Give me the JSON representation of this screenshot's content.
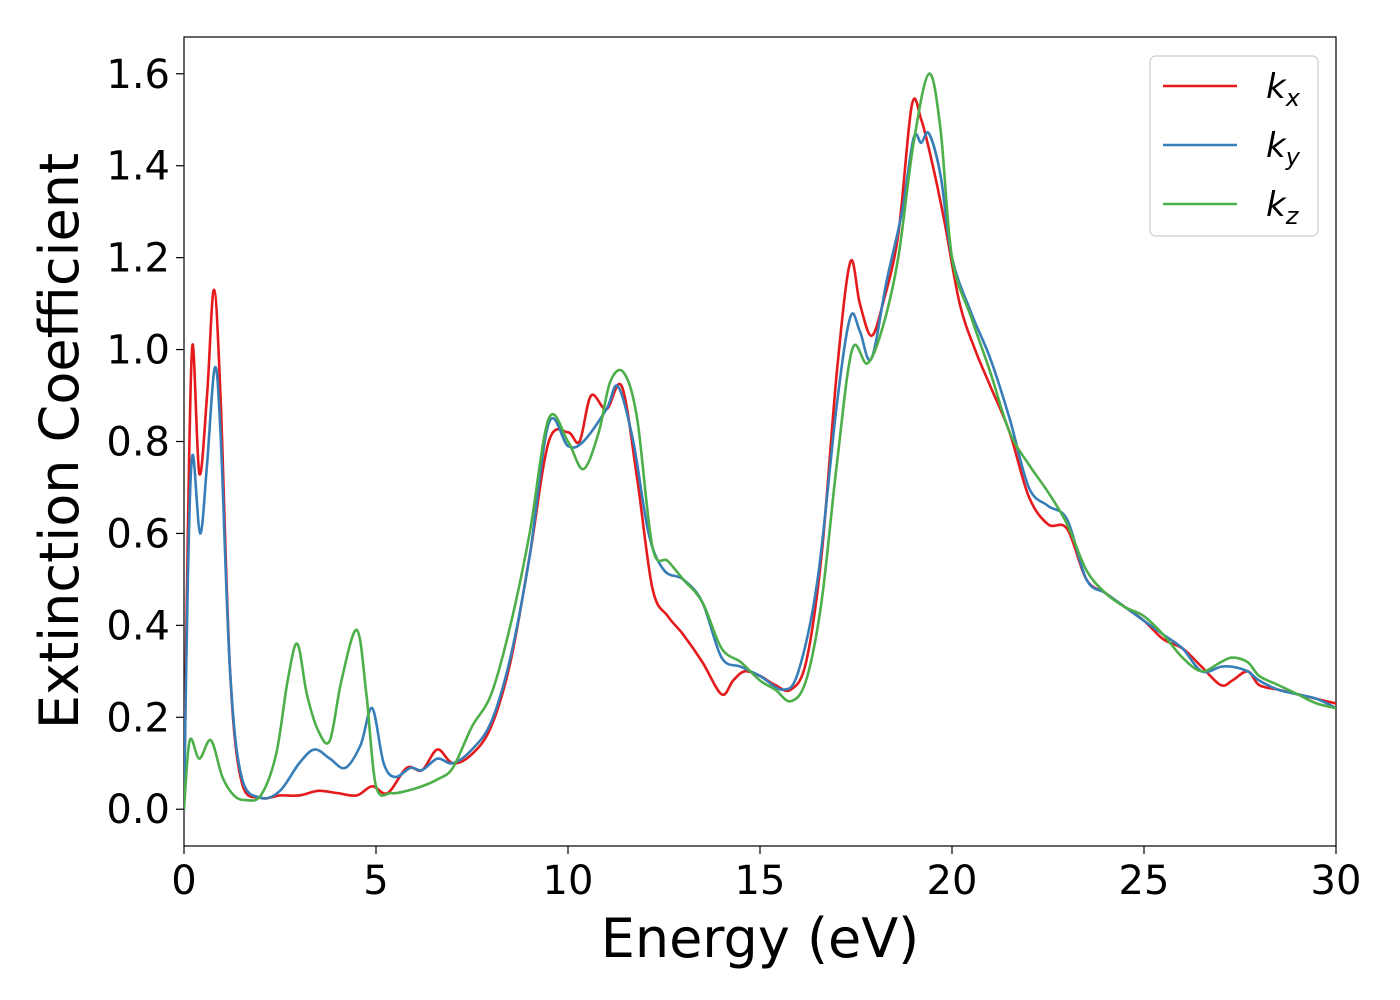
{
  "chart_data": {
    "type": "line",
    "xlabel": "Energy (eV)",
    "ylabel": "Extinction Coefficient",
    "xlim": [
      0,
      30
    ],
    "ylim": [
      -0.08,
      1.68
    ],
    "xticks": [
      "0",
      "5",
      "10",
      "15",
      "20",
      "25",
      "30"
    ],
    "yticks": [
      "0.0",
      "0.2",
      "0.4",
      "0.6",
      "0.8",
      "1.0",
      "1.2",
      "1.4",
      "1.6"
    ],
    "grid": false,
    "legend_position": "top-right",
    "series": [
      {
        "name": "k",
        "subscript": "x",
        "color": "#e41a1c",
        "x": [
          0,
          0.1,
          0.22,
          0.4,
          0.6,
          0.78,
          0.95,
          1.2,
          1.5,
          2.0,
          2.5,
          3.0,
          3.5,
          4.0,
          4.5,
          4.9,
          5.3,
          5.8,
          6.2,
          6.6,
          7.0,
          7.5,
          8.0,
          8.5,
          9.0,
          9.5,
          10.0,
          10.3,
          10.6,
          11.0,
          11.4,
          11.8,
          12.2,
          12.6,
          13.0,
          13.5,
          14.0,
          14.3,
          14.6,
          15.0,
          15.4,
          15.8,
          16.2,
          16.6,
          17.0,
          17.35,
          17.6,
          17.9,
          18.2,
          18.6,
          18.95,
          19.2,
          19.5,
          19.8,
          20.2,
          20.6,
          21.0,
          21.5,
          22.0,
          22.5,
          23.0,
          23.5,
          24.0,
          24.5,
          25.0,
          25.5,
          26.0,
          26.5,
          27.0,
          27.3,
          27.7,
          28.0,
          28.5,
          29.0,
          29.5,
          30.0
        ],
        "values": [
          0.0,
          0.6,
          1.01,
          0.73,
          0.9,
          1.13,
          0.9,
          0.3,
          0.06,
          0.025,
          0.03,
          0.03,
          0.04,
          0.035,
          0.03,
          0.05,
          0.035,
          0.09,
          0.085,
          0.13,
          0.1,
          0.12,
          0.18,
          0.32,
          0.55,
          0.8,
          0.82,
          0.8,
          0.9,
          0.87,
          0.92,
          0.72,
          0.48,
          0.42,
          0.38,
          0.32,
          0.25,
          0.28,
          0.3,
          0.29,
          0.27,
          0.26,
          0.32,
          0.55,
          0.95,
          1.19,
          1.1,
          1.03,
          1.1,
          1.25,
          1.53,
          1.5,
          1.4,
          1.28,
          1.1,
          1.0,
          0.92,
          0.82,
          0.68,
          0.62,
          0.61,
          0.5,
          0.47,
          0.44,
          0.41,
          0.37,
          0.35,
          0.31,
          0.27,
          0.28,
          0.3,
          0.27,
          0.26,
          0.25,
          0.24,
          0.23
        ]
      },
      {
        "name": "k",
        "subscript": "y",
        "color": "#377eb8",
        "x": [
          0,
          0.1,
          0.22,
          0.42,
          0.6,
          0.8,
          0.95,
          1.2,
          1.5,
          2.0,
          2.5,
          3.0,
          3.4,
          3.8,
          4.2,
          4.6,
          4.9,
          5.2,
          5.5,
          5.9,
          6.2,
          6.6,
          7.0,
          7.5,
          8.0,
          8.5,
          9.0,
          9.5,
          10.0,
          10.4,
          11.0,
          11.3,
          11.7,
          12.1,
          12.5,
          13.0,
          13.5,
          14.0,
          14.5,
          15.0,
          15.6,
          16.0,
          16.5,
          17.0,
          17.35,
          17.6,
          17.9,
          18.3,
          18.7,
          19.0,
          19.2,
          19.4,
          19.7,
          20.0,
          20.5,
          21.0,
          21.5,
          22.0,
          22.5,
          23.0,
          23.5,
          24.0,
          24.5,
          25.0,
          25.5,
          26.0,
          26.5,
          27.0,
          27.3,
          27.7,
          28.0,
          28.5,
          29.0,
          29.5,
          30.0
        ],
        "values": [
          0.0,
          0.5,
          0.77,
          0.6,
          0.75,
          0.96,
          0.82,
          0.3,
          0.07,
          0.025,
          0.04,
          0.1,
          0.13,
          0.11,
          0.09,
          0.14,
          0.22,
          0.1,
          0.07,
          0.09,
          0.085,
          0.11,
          0.1,
          0.13,
          0.19,
          0.33,
          0.55,
          0.84,
          0.79,
          0.8,
          0.87,
          0.92,
          0.8,
          0.6,
          0.52,
          0.5,
          0.45,
          0.33,
          0.31,
          0.29,
          0.26,
          0.3,
          0.5,
          0.88,
          1.07,
          1.04,
          0.98,
          1.15,
          1.3,
          1.46,
          1.45,
          1.47,
          1.38,
          1.2,
          1.08,
          0.98,
          0.85,
          0.7,
          0.66,
          0.63,
          0.5,
          0.47,
          0.44,
          0.41,
          0.38,
          0.35,
          0.3,
          0.31,
          0.31,
          0.3,
          0.28,
          0.26,
          0.25,
          0.24,
          0.22
        ]
      },
      {
        "name": "k",
        "subscript": "z",
        "color": "#4daf4a",
        "x": [
          0,
          0.15,
          0.4,
          0.7,
          1.0,
          1.3,
          1.6,
          2.0,
          2.4,
          2.7,
          2.95,
          3.2,
          3.5,
          3.8,
          4.1,
          4.5,
          4.75,
          5.0,
          5.4,
          5.8,
          6.2,
          6.6,
          7.0,
          7.5,
          8.0,
          8.5,
          9.0,
          9.5,
          10.0,
          10.4,
          10.8,
          11.1,
          11.45,
          11.8,
          12.2,
          12.6,
          13.0,
          13.5,
          14.0,
          14.5,
          15.0,
          15.4,
          15.8,
          16.2,
          16.6,
          17.0,
          17.4,
          17.8,
          18.2,
          18.6,
          19.0,
          19.4,
          19.7,
          20.0,
          20.5,
          21.0,
          21.5,
          22.0,
          22.5,
          23.0,
          23.5,
          24.0,
          24.5,
          25.0,
          25.5,
          26.0,
          26.5,
          27.0,
          27.3,
          27.7,
          28.0,
          28.5,
          29.0,
          29.5,
          30.0
        ],
        "values": [
          0.0,
          0.15,
          0.11,
          0.15,
          0.07,
          0.03,
          0.02,
          0.03,
          0.12,
          0.28,
          0.36,
          0.25,
          0.17,
          0.15,
          0.28,
          0.39,
          0.25,
          0.05,
          0.035,
          0.04,
          0.05,
          0.065,
          0.09,
          0.18,
          0.25,
          0.4,
          0.6,
          0.85,
          0.8,
          0.74,
          0.82,
          0.93,
          0.95,
          0.85,
          0.57,
          0.54,
          0.5,
          0.45,
          0.35,
          0.32,
          0.28,
          0.26,
          0.235,
          0.28,
          0.45,
          0.75,
          1.0,
          0.97,
          1.05,
          1.2,
          1.45,
          1.6,
          1.48,
          1.2,
          1.07,
          0.95,
          0.82,
          0.75,
          0.69,
          0.62,
          0.52,
          0.47,
          0.44,
          0.42,
          0.38,
          0.33,
          0.3,
          0.32,
          0.33,
          0.32,
          0.29,
          0.27,
          0.25,
          0.23,
          0.22
        ]
      }
    ]
  }
}
